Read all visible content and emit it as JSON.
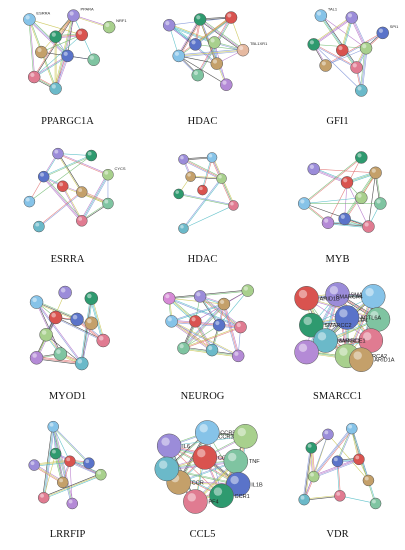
{
  "figure": {
    "panels": [
      {
        "caption": "PPARGC1A",
        "nodes": [
          {
            "label": "ESRRA",
            "color": "#86c3e8"
          },
          {
            "label": "PPARA",
            "color": "#9b8cd9"
          },
          {
            "label": "",
            "color": "#2e9a6f"
          },
          {
            "label": "",
            "color": "#d9534f"
          },
          {
            "label": "NRF1",
            "color": "#a8d08d"
          },
          {
            "label": "",
            "color": "#5a73c9"
          },
          {
            "label": "",
            "color": "#c4a06a"
          },
          {
            "label": "",
            "color": "#7fc4a1"
          },
          {
            "label": "",
            "color": "#e07b91"
          },
          {
            "label": "",
            "color": "#6bb9c9"
          }
        ]
      },
      {
        "caption": "HDAC",
        "nodes": [
          {
            "label": "",
            "color": "#9b8cd9"
          },
          {
            "label": "",
            "color": "#2e9a6f"
          },
          {
            "label": "",
            "color": "#d9534f"
          },
          {
            "label": "",
            "color": "#5a73c9"
          },
          {
            "label": "",
            "color": "#a8d08d"
          },
          {
            "label": "",
            "color": "#86c3e8"
          },
          {
            "label": "",
            "color": "#c4a06a"
          },
          {
            "label": "TBL1XR1",
            "color": "#e6b9a0"
          },
          {
            "label": "",
            "color": "#7fc4a1"
          },
          {
            "label": "",
            "color": "#b48ad6"
          }
        ]
      },
      {
        "caption": "GFI1",
        "nodes": [
          {
            "label": "TAL1",
            "color": "#86c3e8"
          },
          {
            "label": "",
            "color": "#9b8cd9"
          },
          {
            "label": "SPI1",
            "color": "#5a73c9"
          },
          {
            "label": "",
            "color": "#d9534f"
          },
          {
            "label": "",
            "color": "#2e9a6f"
          },
          {
            "label": "",
            "color": "#a8d08d"
          },
          {
            "label": "",
            "color": "#c4a06a"
          },
          {
            "label": "",
            "color": "#e07b91"
          },
          {
            "label": "",
            "color": "#6bb9c9"
          }
        ]
      },
      {
        "caption": "ESRRA",
        "nodes": [
          {
            "label": "",
            "color": "#9b8cd9"
          },
          {
            "label": "",
            "color": "#2e9a6f"
          },
          {
            "label": "",
            "color": "#d9534f"
          },
          {
            "label": "CYCS",
            "color": "#a8d08d"
          },
          {
            "label": "",
            "color": "#5a73c9"
          },
          {
            "label": "",
            "color": "#c4a06a"
          },
          {
            "label": "",
            "color": "#86c3e8"
          },
          {
            "label": "",
            "color": "#7fc4a1"
          },
          {
            "label": "",
            "color": "#e07b91"
          },
          {
            "label": "",
            "color": "#6bb9c9"
          }
        ]
      },
      {
        "caption": "HDAC",
        "nodes": [
          {
            "label": "",
            "color": "#9b8cd9"
          },
          {
            "label": "",
            "color": "#86c3e8"
          },
          {
            "label": "",
            "color": "#c4a06a"
          },
          {
            "label": "",
            "color": "#2e9a6f"
          },
          {
            "label": "",
            "color": "#d9534f"
          },
          {
            "label": "",
            "color": "#a8d08d"
          },
          {
            "label": "",
            "color": "#6bb9c9"
          },
          {
            "label": "",
            "color": "#e07b91"
          }
        ]
      },
      {
        "caption": "MYB",
        "nodes": [
          {
            "label": "",
            "color": "#9b8cd9"
          },
          {
            "label": "",
            "color": "#2e9a6f"
          },
          {
            "label": "",
            "color": "#c4a06a"
          },
          {
            "label": "",
            "color": "#d9534f"
          },
          {
            "label": "",
            "color": "#86c3e8"
          },
          {
            "label": "",
            "color": "#a8d08d"
          },
          {
            "label": "",
            "color": "#5a73c9"
          },
          {
            "label": "",
            "color": "#b48ad6"
          },
          {
            "label": "",
            "color": "#7fc4a1"
          },
          {
            "label": "",
            "color": "#e07b91"
          }
        ]
      },
      {
        "caption": "MYOD1",
        "nodes": [
          {
            "label": "",
            "color": "#86c3e8"
          },
          {
            "label": "",
            "color": "#9b8cd9"
          },
          {
            "label": "",
            "color": "#2e9a6f"
          },
          {
            "label": "",
            "color": "#d9534f"
          },
          {
            "label": "",
            "color": "#5a73c9"
          },
          {
            "label": "",
            "color": "#a8d08d"
          },
          {
            "label": "",
            "color": "#c4a06a"
          },
          {
            "label": "",
            "color": "#e07b91"
          },
          {
            "label": "",
            "color": "#7fc4a1"
          },
          {
            "label": "",
            "color": "#6bb9c9"
          },
          {
            "label": "",
            "color": "#b48ad6"
          }
        ]
      },
      {
        "caption": "NEUROG",
        "nodes": [
          {
            "label": "",
            "color": "#d68ad6"
          },
          {
            "label": "",
            "color": "#9b8cd9"
          },
          {
            "label": "",
            "color": "#c4a06a"
          },
          {
            "label": "",
            "color": "#a8d08d"
          },
          {
            "label": "",
            "color": "#d9534f"
          },
          {
            "label": "",
            "color": "#5a73c9"
          },
          {
            "label": "",
            "color": "#86c3e8"
          },
          {
            "label": "",
            "color": "#e07b91"
          },
          {
            "label": "",
            "color": "#7fc4a1"
          },
          {
            "label": "",
            "color": "#6bb9c9"
          },
          {
            "label": "",
            "color": "#b48ad6"
          }
        ]
      },
      {
        "caption": "SMARCC1",
        "nodes": [
          {
            "label": "SMARCB1",
            "color": "#9b8cd9"
          },
          {
            "label": "SMARCA4",
            "color": "#86c3e8"
          },
          {
            "label": "ARID1B",
            "color": "#d9534f"
          },
          {
            "label": "SMARCD1",
            "color": "#7fc4a1"
          },
          {
            "label": "ACTL6A",
            "color": "#5a73c9"
          },
          {
            "label": "SMARCC2",
            "color": "#2e9a6f"
          },
          {
            "label": "SMARCC1",
            "color": "#e07b91"
          },
          {
            "label": "SMARCE1",
            "color": "#6bb9c9"
          },
          {
            "label": "SMARCA2",
            "color": "#a8d08d"
          },
          {
            "label": "ARID1A",
            "color": "#c4a06a"
          },
          {
            "label": "",
            "color": "#b48ad6"
          }
        ]
      },
      {
        "caption": "LRRFIP",
        "nodes": [
          {
            "label": "",
            "color": "#86c3e8"
          },
          {
            "label": "",
            "color": "#9b8cd9"
          },
          {
            "label": "",
            "color": "#d9534f"
          },
          {
            "label": "",
            "color": "#2e9a6f"
          },
          {
            "label": "",
            "color": "#5a73c9"
          },
          {
            "label": "",
            "color": "#a8d08d"
          },
          {
            "label": "",
            "color": "#c4a06a"
          },
          {
            "label": "",
            "color": "#e07b91"
          },
          {
            "label": "",
            "color": "#b48ad6"
          }
        ]
      },
      {
        "caption": "CCL5",
        "nodes": [
          {
            "label": "CCR5",
            "color": "#86c3e8"
          },
          {
            "label": "CCR3",
            "color": "#a8d08d"
          },
          {
            "label": "IL6",
            "color": "#9b8cd9"
          },
          {
            "label": "CCL",
            "color": "#d9534f"
          },
          {
            "label": "TNF",
            "color": "#7fc4a1"
          },
          {
            "label": "IL1B",
            "color": "#5a73c9"
          },
          {
            "label": "CCR",
            "color": "#c4a06a"
          },
          {
            "label": "CCR1",
            "color": "#2e9a6f"
          },
          {
            "label": "PF4",
            "color": "#e07b91"
          },
          {
            "label": "",
            "color": "#6bb9c9"
          }
        ]
      },
      {
        "caption": "VDR",
        "nodes": [
          {
            "label": "",
            "color": "#9b8cd9"
          },
          {
            "label": "",
            "color": "#86c3e8"
          },
          {
            "label": "",
            "color": "#2e9a6f"
          },
          {
            "label": "",
            "color": "#5a73c9"
          },
          {
            "label": "",
            "color": "#d9534f"
          },
          {
            "label": "",
            "color": "#a8d08d"
          },
          {
            "label": "",
            "color": "#c4a06a"
          },
          {
            "label": "",
            "color": "#e07b91"
          },
          {
            "label": "",
            "color": "#7fc4a1"
          },
          {
            "label": "",
            "color": "#6bb9c9"
          }
        ]
      }
    ],
    "edge_colors": [
      "#e06d6d",
      "#6fb86f",
      "#7a8fd6",
      "#c7c24a",
      "#b06fc7",
      "#4ab8c2",
      "#333333"
    ]
  }
}
